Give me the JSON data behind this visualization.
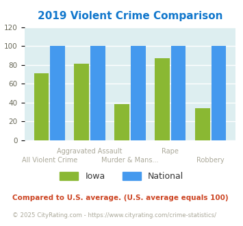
{
  "title": "2019 Violent Crime Comparison",
  "categories": [
    "All Violent Crime",
    "Aggravated Assault",
    "Murder & Mans...",
    "Rape",
    "Robbery"
  ],
  "x_labels_line1": [
    "",
    "Aggravated Assault",
    "",
    "Rape",
    ""
  ],
  "x_labels_line2": [
    "All Violent Crime",
    "",
    "Murder & Mans...",
    "",
    "Robbery"
  ],
  "iowa_values": [
    71,
    81,
    38,
    87,
    34
  ],
  "national_values": [
    100,
    100,
    100,
    100,
    100
  ],
  "iowa_color": "#8ab833",
  "national_color": "#4499ee",
  "title_color": "#1177cc",
  "ylim": [
    0,
    120
  ],
  "yticks": [
    0,
    20,
    40,
    60,
    80,
    100,
    120
  ],
  "legend_iowa": "Iowa",
  "legend_national": "National",
  "footnote1": "Compared to U.S. average. (U.S. average equals 100)",
  "footnote2": "© 2025 CityRating.com - https://www.cityrating.com/crime-statistics/",
  "bg_color": "#ddeef0",
  "label_color": "#aaa899",
  "footnote1_color": "#cc4422",
  "footnote2_color": "#aaa899"
}
